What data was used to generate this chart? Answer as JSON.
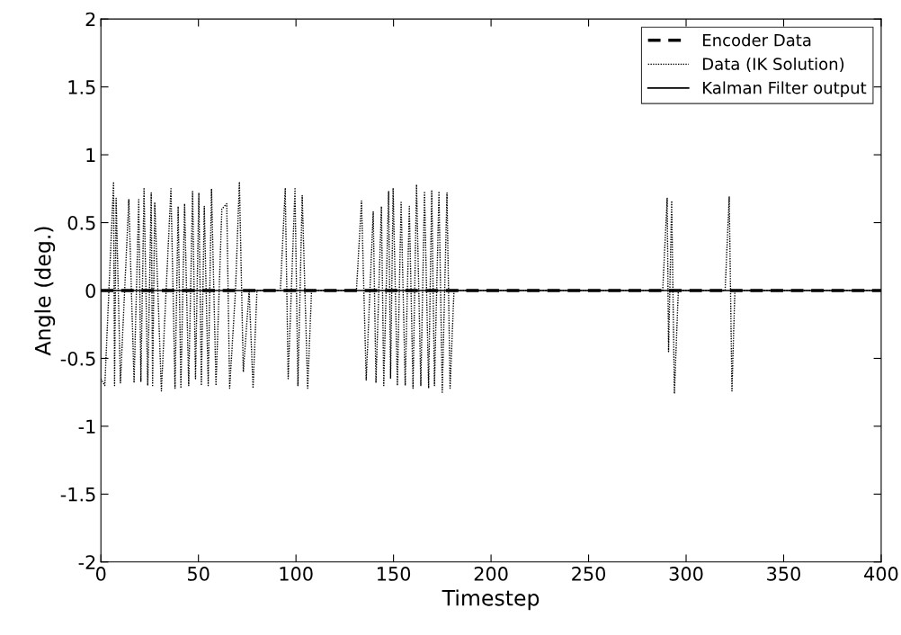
{
  "chart_data": {
    "type": "line",
    "xlabel": "Timestep",
    "ylabel": "Angle (deg.)",
    "xlim": [
      0,
      400
    ],
    "xticks": [
      0,
      50,
      100,
      150,
      200,
      250,
      300,
      350,
      400
    ],
    "ylim": [
      -2,
      2
    ],
    "yticks": [
      -2,
      -1.5,
      -1,
      -0.5,
      0,
      0.5,
      1,
      1.5,
      2
    ],
    "grid": false,
    "legend": "top right",
    "series": [
      {
        "name": "Encoder Data",
        "color": "#000000",
        "line_style": "dashed",
        "x": [
          0,
          400
        ],
        "values": [
          0,
          0
        ]
      },
      {
        "name": "Data (IK Solution)",
        "color": "#000000",
        "line_style": "dotted",
        "x": [
          0,
          2,
          6.5,
          7,
          7.8,
          10,
          14.3,
          17,
          19.4,
          20.5,
          22.1,
          24,
          25.8,
          26.5,
          27.6,
          31,
          35.9,
          38,
          39.6,
          41,
          42.9,
          45,
          47,
          48.5,
          50.2,
          51.5,
          53,
          55,
          56.7,
          59,
          62,
          64.5,
          66,
          69,
          71,
          73,
          76,
          78,
          80,
          92,
          94.5,
          96,
          99.5,
          101,
          103.2,
          106,
          108,
          131,
          133.6,
          136,
          139.6,
          141,
          143.8,
          145,
          147.5,
          148.5,
          149.8,
          152,
          153.9,
          156,
          158.1,
          160,
          161.8,
          164,
          165.9,
          168,
          169.6,
          171,
          173.3,
          175,
          177.4,
          179,
          181,
          288,
          290.3,
          291,
          292.6,
          294,
          296,
          320,
          322.1,
          323.5,
          325,
          400
        ],
        "values": [
          -0.65,
          -0.7,
          0.8,
          -0.7,
          0.68,
          -0.68,
          0.67,
          -0.68,
          0.67,
          -0.67,
          0.75,
          -0.7,
          0.72,
          -0.7,
          0.65,
          -0.74,
          0.75,
          -0.72,
          0.62,
          -0.72,
          0.64,
          -0.7,
          0.73,
          -0.65,
          0.72,
          -0.7,
          0.62,
          -0.7,
          0.75,
          -0.7,
          0.6,
          0.64,
          -0.72,
          0,
          0.8,
          -0.6,
          0,
          -0.72,
          0,
          0,
          0.75,
          -0.65,
          0.75,
          -0.7,
          0.7,
          -0.72,
          0,
          0,
          0.66,
          -0.66,
          0.58,
          -0.68,
          0.62,
          -0.7,
          0.73,
          -0.65,
          0.75,
          -0.7,
          0.65,
          -0.7,
          0.62,
          -0.72,
          0.78,
          -0.7,
          0.73,
          -0.72,
          0.74,
          -0.7,
          0.73,
          -0.75,
          0.72,
          -0.72,
          0,
          0,
          0.68,
          -0.45,
          0.66,
          -0.76,
          0,
          0,
          0.69,
          -0.74,
          0,
          0
        ]
      },
      {
        "name": "Kalman Filter output",
        "color": "#000000",
        "line_style": "solid",
        "x": [
          0,
          400
        ],
        "values": [
          0,
          0
        ]
      }
    ]
  }
}
